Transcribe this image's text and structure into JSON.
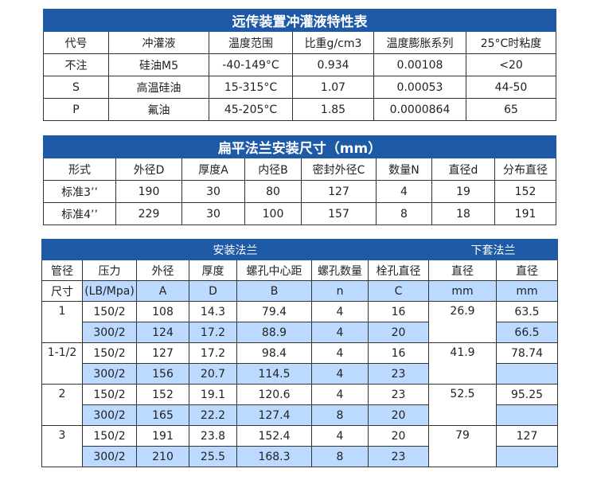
{
  "table1": {
    "title": "远传装置冲灌液特性表",
    "headers": [
      "代号",
      "冲灌液",
      "温度范围",
      "比重g/cm3",
      "温度膨胀系列",
      "25°C时粘度"
    ],
    "rows": [
      [
        "不注",
        "硅油M5",
        "-40-149°C",
        "0.934",
        "0.00108",
        "<20"
      ],
      [
        "S",
        "高温硅油",
        "15-315°C",
        "1.07",
        "0.00053",
        "44-50"
      ],
      [
        "P",
        "氟油",
        "45-205°C",
        "1.85",
        "0.0000864",
        "65"
      ]
    ]
  },
  "table2": {
    "title": "扁平法兰安装尺寸（mm）",
    "headers": [
      "形式",
      "外径D",
      "厚度A",
      "内径B",
      "密封外径C",
      "数量N",
      "直径d",
      "分布直径"
    ],
    "rows": [
      [
        "标准3’’",
        "190",
        "30",
        "80",
        "127",
        "4",
        "19",
        "152"
      ],
      [
        "标准4’’",
        "229",
        "30",
        "100",
        "157",
        "8",
        "18",
        "191"
      ]
    ]
  },
  "table3": {
    "group1": "安装法兰",
    "group2": "下套法兰",
    "headers": [
      "管径",
      "压力",
      "外径",
      "厚度",
      "螺孔中心距",
      "螺孔数量",
      "栓孔直径",
      "直径",
      "直径"
    ],
    "subheaders": [
      "尺寸",
      "(LB/Mpa)",
      "A",
      "D",
      "B",
      "n",
      "C",
      "mm",
      "mm"
    ],
    "groups": [
      {
        "size": "1",
        "d1": "26.9",
        "rows": [
          [
            "150/2",
            "108",
            "14.3",
            "79.4",
            "4",
            "16",
            "63.5"
          ],
          [
            "300/2",
            "124",
            "17.2",
            "88.9",
            "4",
            "20",
            "66.5"
          ]
        ]
      },
      {
        "size": "1-1/2",
        "d1": "41.9",
        "rows": [
          [
            "150/2",
            "127",
            "17.2",
            "98.4",
            "4",
            "16",
            "78.74"
          ],
          [
            "300/2",
            "156",
            "20.7",
            "114.5",
            "4",
            "23",
            ""
          ]
        ]
      },
      {
        "size": "2",
        "d1": "52.5",
        "rows": [
          [
            "150/2",
            "152",
            "19.1",
            "120.6",
            "4",
            "23",
            "95.25"
          ],
          [
            "300/2",
            "165",
            "22.2",
            "127.4",
            "8",
            "20",
            ""
          ]
        ]
      },
      {
        "size": "3",
        "d1": "79",
        "rows": [
          [
            "150/2",
            "191",
            "23.8",
            "152.4",
            "4",
            "20",
            "127"
          ],
          [
            "300/2",
            "210",
            "25.5",
            "168.3",
            "8",
            "23",
            ""
          ]
        ]
      }
    ]
  },
  "colors": {
    "header_blue": "#1f5aa6",
    "row_light_blue": "#bcd9ff"
  }
}
